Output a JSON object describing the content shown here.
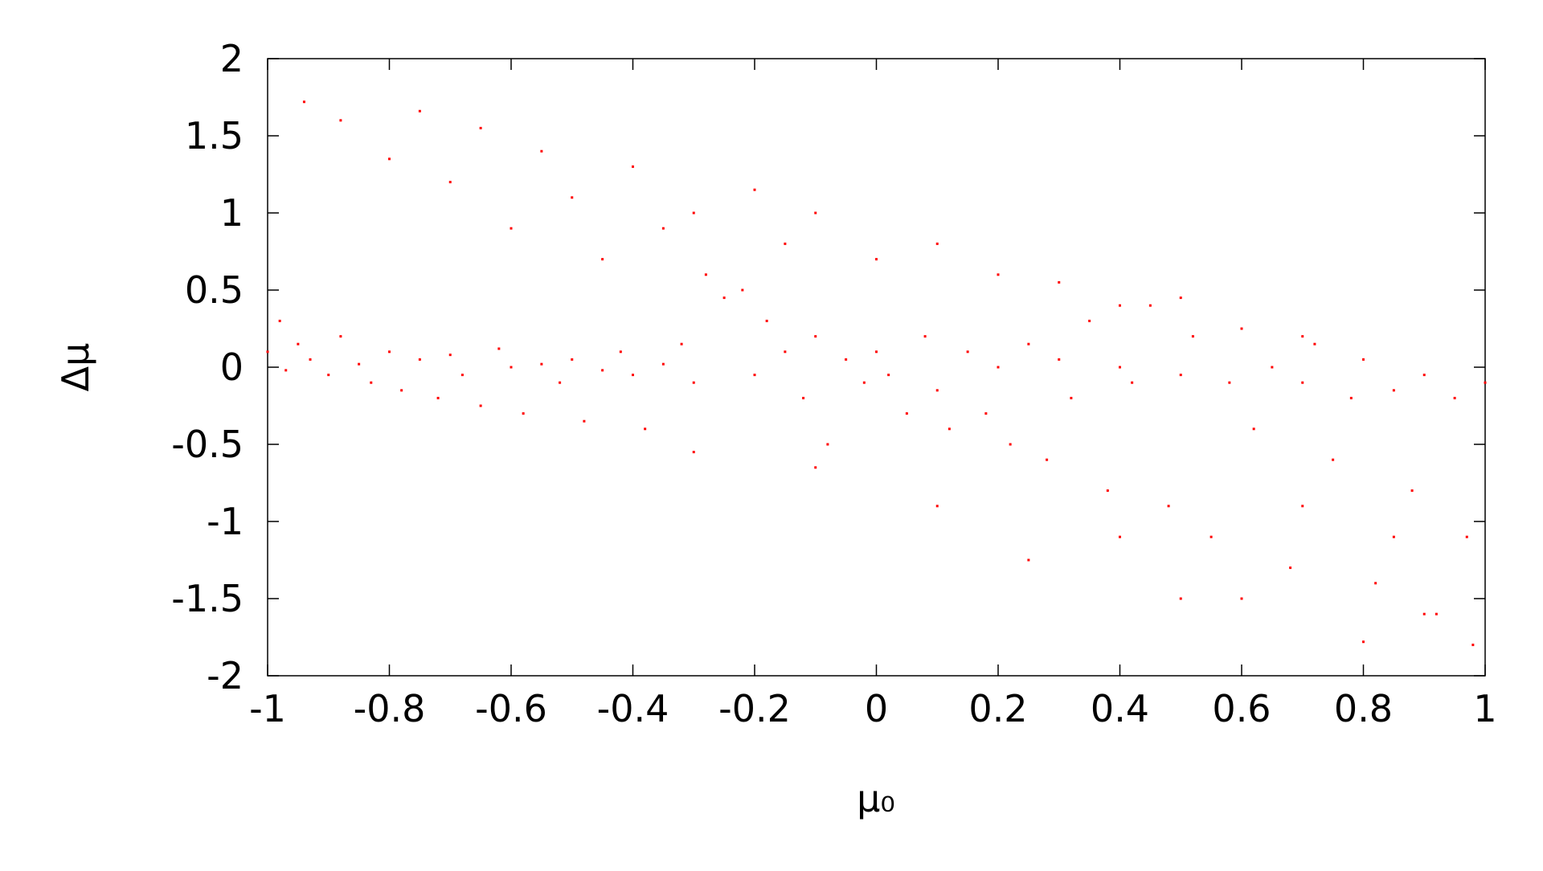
{
  "chart_data": {
    "type": "scatter",
    "xlabel": "μ₀",
    "ylabel": "Δμ",
    "color": "#ff0000",
    "xlim": [
      -1,
      1
    ],
    "ylim": [
      -2,
      2
    ],
    "xticks": [
      -1,
      -0.8,
      -0.6,
      -0.4,
      -0.2,
      0,
      0.2,
      0.4,
      0.6,
      0.8,
      1
    ],
    "yticks": [
      -2,
      -1.5,
      -1,
      -0.5,
      0,
      0.5,
      1,
      1.5,
      2
    ],
    "grid": false,
    "x": [
      -1,
      -0.98,
      -0.97,
      -0.95,
      -0.93,
      -0.9,
      -0.88,
      -0.85,
      -0.83,
      -0.8,
      -0.78,
      -0.75,
      -0.72,
      -0.7,
      -0.68,
      -0.65,
      -0.62,
      -0.6,
      -0.58,
      -0.55,
      -0.52,
      -0.5,
      -0.48,
      -0.45,
      -0.42,
      -0.4,
      -0.38,
      -0.35,
      -0.32,
      -0.3,
      -0.28,
      -0.25,
      -0.22,
      -0.2,
      -0.18,
      -0.15,
      -0.12,
      -0.1,
      -0.08,
      -0.05,
      -0.02,
      0,
      0.02,
      0.05,
      0.08,
      0.1,
      0.12,
      0.15,
      0.18,
      0.2,
      0.22,
      0.25,
      0.28,
      0.3,
      0.32,
      0.35,
      0.38,
      0.4,
      0.42,
      0.45,
      0.48,
      0.5,
      0.52,
      0.55,
      0.58,
      0.6,
      0.62,
      0.65,
      0.68,
      0.7,
      0.72,
      0.75,
      0.78,
      0.8,
      0.82,
      0.85,
      0.88,
      0.9,
      0.92,
      0.95,
      0.97,
      1,
      -0.94,
      -0.88,
      -0.8,
      -0.75,
      -0.7,
      -0.65,
      -0.6,
      -0.55,
      -0.5,
      -0.45,
      -0.4,
      -0.35,
      -0.3,
      -0.2,
      -0.15,
      -0.1,
      0,
      0.1,
      0.2,
      0.3,
      0.4,
      0.5,
      0.7,
      -0.3,
      -0.1,
      0.1,
      0.25,
      0.4,
      0.5,
      0.6,
      0.8,
      0.9,
      0.98,
      0.85,
      0.7
    ],
    "y": [
      0.1,
      0.3,
      -0.02,
      0.15,
      0.05,
      -0.05,
      0.2,
      0.02,
      -0.1,
      0.1,
      -0.15,
      0.05,
      -0.2,
      0.08,
      -0.05,
      -0.25,
      0.12,
      0,
      -0.3,
      0.02,
      -0.1,
      0.05,
      -0.35,
      -0.02,
      0.1,
      -0.05,
      -0.4,
      0.02,
      0.15,
      -0.1,
      0.6,
      0.45,
      0.5,
      -0.05,
      0.3,
      0.1,
      -0.2,
      0.2,
      -0.5,
      0.05,
      -0.1,
      0.1,
      -0.05,
      -0.3,
      0.2,
      -0.15,
      -0.4,
      0.1,
      -0.3,
      0,
      -0.5,
      0.15,
      -0.6,
      0.05,
      -0.2,
      0.3,
      -0.8,
      0,
      -0.1,
      0.4,
      -0.9,
      -0.05,
      0.2,
      -1.1,
      -0.1,
      0.25,
      -0.4,
      0,
      -1.3,
      -0.1,
      0.15,
      -0.6,
      -0.2,
      0.05,
      -1.4,
      -0.15,
      -0.8,
      -0.05,
      -1.6,
      -0.2,
      -1.1,
      -0.1,
      1.72,
      1.6,
      1.35,
      1.66,
      1.2,
      1.55,
      0.9,
      1.4,
      1.1,
      0.7,
      1.3,
      0.9,
      1.0,
      1.15,
      0.8,
      1.0,
      0.7,
      0.8,
      0.6,
      0.55,
      0.4,
      0.45,
      0.2,
      -0.55,
      -0.65,
      -0.9,
      -1.25,
      -1.1,
      -1.5,
      -1.5,
      -1.78,
      -1.6,
      -1.8,
      -1.1,
      -0.9
    ]
  }
}
